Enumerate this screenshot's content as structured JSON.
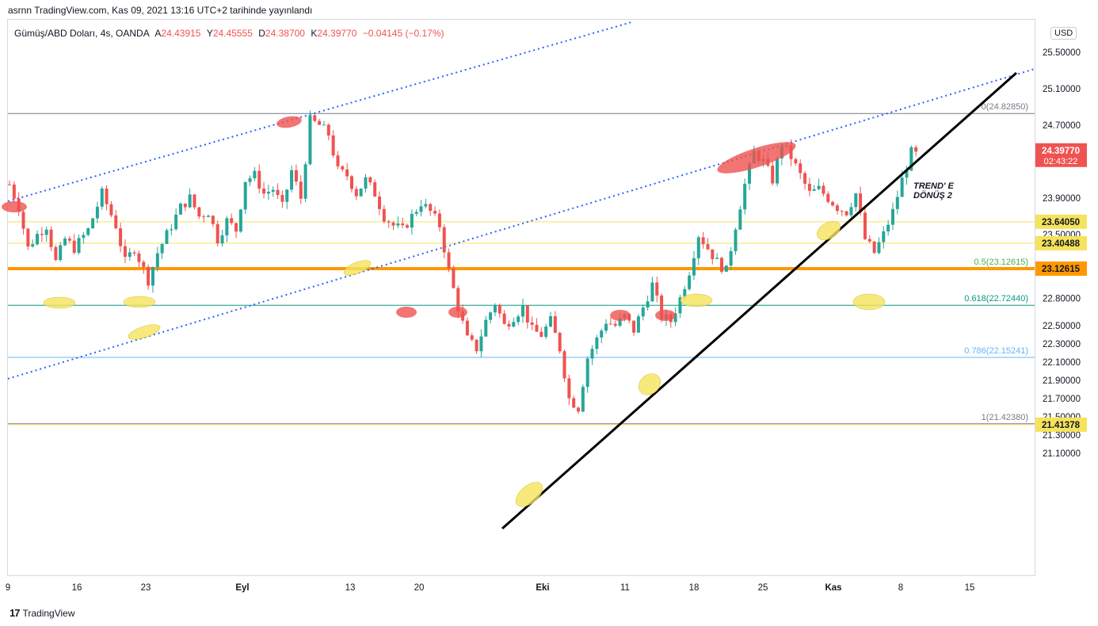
{
  "header": {
    "published": "asrnn TradingView.com, Kas 09, 2021 13:16 UTC+2 tarihinde yayınlandı"
  },
  "legend": {
    "symbol": "Gümüş/ABD Doları, 4s, OANDA",
    "open_label": "A",
    "open": "24.43915",
    "high_label": "Y",
    "high": "24.45555",
    "low_label": "D",
    "low": "24.38700",
    "close_label": "K",
    "close": "24.39770",
    "change": "−0.04145 (−0.17%)"
  },
  "currency_button": "USD",
  "brand": "TradingView",
  "colors": {
    "bull": "#26a69a",
    "bear": "#ef5350",
    "fib_orange": "#ff9800",
    "fib_teal": "#26a69a",
    "fib_blue": "#64b5f6",
    "fib_gray": "#787b86",
    "yellow_line": "#f5e35b",
    "dotted_blue": "#2962ff",
    "trend_black": "#000000"
  },
  "chart_data": {
    "type": "candlestick",
    "symbol": "Gümüş/ABD Doları",
    "timeframe": "4s",
    "yscale_ticks": [
      "25.50000",
      "25.10000",
      "24.70000",
      "23.90000",
      "23.50000",
      "22.80000",
      "22.50000",
      "22.30000",
      "22.10000",
      "21.90000",
      "21.70000",
      "21.50000",
      "21.30000",
      "21.10000"
    ],
    "x_tick_labels": [
      "9",
      "16",
      "23",
      "Eyl",
      "13",
      "20",
      "Eki",
      "11",
      "18",
      "25",
      "Kas",
      "8",
      "15"
    ],
    "current_price": {
      "value": "24.39770",
      "countdown": "02:43:22"
    },
    "horizontal_levels": [
      {
        "value": "23.64050",
        "color": "#f5e35b"
      },
      {
        "value": "23.40488",
        "color": "#f5e35b"
      },
      {
        "value": "23.12615",
        "color": "#ff9800"
      },
      {
        "value": "21.41378",
        "color": "#f5e35b"
      }
    ],
    "fibonacci": [
      {
        "label": "0(24.82850)",
        "price": 24.8285,
        "color": "#787b86"
      },
      {
        "label": "0.5(23.12615)",
        "price": 23.12615,
        "color": "#4caf50"
      },
      {
        "label": "0.618(22.72440)",
        "price": 22.7244,
        "color": "#089981"
      },
      {
        "label": "0.786(22.15241)",
        "price": 22.15241,
        "color": "#64b5f6"
      },
      {
        "label": "1(21.42380)",
        "price": 21.4238,
        "color": "#787b86"
      }
    ],
    "annotation": [
      "TREND' E",
      "DÖNÜŞ 2"
    ],
    "path_points": [
      [
        0,
        24.05
      ],
      [
        2,
        23.8
      ],
      [
        4,
        23.35
      ],
      [
        6,
        23.5
      ],
      [
        8,
        23.6
      ],
      [
        10,
        23.2
      ],
      [
        12,
        23.45
      ],
      [
        14,
        23.35
      ],
      [
        17,
        23.55
      ],
      [
        20,
        23.95
      ],
      [
        23,
        23.6
      ],
      [
        25,
        23.2
      ],
      [
        27,
        23.35
      ],
      [
        30,
        23.0
      ],
      [
        32,
        23.3
      ],
      [
        35,
        23.6
      ],
      [
        37,
        23.8
      ],
      [
        39,
        23.9
      ],
      [
        41,
        23.7
      ],
      [
        43,
        23.75
      ],
      [
        45,
        23.45
      ],
      [
        47,
        23.65
      ],
      [
        49,
        23.55
      ],
      [
        51,
        24.1
      ],
      [
        53,
        24.15
      ],
      [
        55,
        23.95
      ],
      [
        57,
        24.0
      ],
      [
        59,
        23.8
      ],
      [
        61,
        24.2
      ],
      [
        63,
        23.9
      ],
      [
        65,
        24.75
      ],
      [
        67,
        24.7
      ],
      [
        69,
        24.6
      ],
      [
        71,
        24.2
      ],
      [
        73,
        24.15
      ],
      [
        75,
        23.95
      ],
      [
        77,
        24.1
      ],
      [
        79,
        23.95
      ],
      [
        81,
        23.7
      ],
      [
        83,
        23.6
      ],
      [
        85,
        23.55
      ],
      [
        87,
        23.7
      ],
      [
        89,
        23.85
      ],
      [
        91,
        23.75
      ],
      [
        93,
        23.6
      ],
      [
        95,
        23.1
      ],
      [
        97,
        22.7
      ],
      [
        99,
        22.35
      ],
      [
        101,
        22.25
      ],
      [
        103,
        22.55
      ],
      [
        105,
        22.75
      ],
      [
        107,
        22.5
      ],
      [
        109,
        22.6
      ],
      [
        111,
        22.7
      ],
      [
        113,
        22.45
      ],
      [
        115,
        22.4
      ],
      [
        117,
        22.55
      ],
      [
        119,
        22.25
      ],
      [
        121,
        21.7
      ],
      [
        123,
        21.6
      ],
      [
        125,
        22.15
      ],
      [
        127,
        22.35
      ],
      [
        129,
        22.55
      ],
      [
        131,
        22.5
      ],
      [
        133,
        22.6
      ],
      [
        135,
        22.45
      ],
      [
        137,
        22.7
      ],
      [
        139,
        22.95
      ],
      [
        141,
        22.6
      ],
      [
        143,
        22.55
      ],
      [
        145,
        22.8
      ],
      [
        147,
        23.1
      ],
      [
        149,
        23.5
      ],
      [
        151,
        23.35
      ],
      [
        153,
        23.2
      ],
      [
        155,
        23.1
      ],
      [
        157,
        23.6
      ],
      [
        159,
        24.05
      ],
      [
        161,
        24.4
      ],
      [
        163,
        24.3
      ],
      [
        165,
        24.1
      ],
      [
        167,
        24.5
      ],
      [
        169,
        24.35
      ],
      [
        171,
        24.15
      ],
      [
        173,
        23.95
      ],
      [
        175,
        24.0
      ],
      [
        177,
        23.9
      ],
      [
        179,
        23.8
      ],
      [
        181,
        23.75
      ],
      [
        183,
        23.95
      ],
      [
        185,
        23.45
      ],
      [
        187,
        23.3
      ],
      [
        189,
        23.5
      ],
      [
        191,
        23.75
      ],
      [
        193,
        24.1
      ],
      [
        195,
        24.4
      ],
      [
        197,
        24.35
      ]
    ]
  }
}
